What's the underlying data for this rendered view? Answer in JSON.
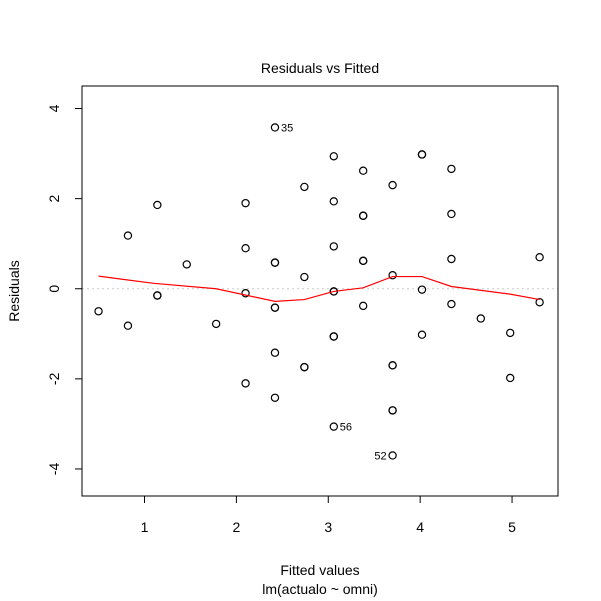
{
  "chart_data": {
    "type": "scatter",
    "title": "Residuals vs Fitted",
    "xlabel": "Fitted values",
    "ylabel": "Residuals",
    "subtitle": "lm(actualo ~ omni)",
    "xlim": [
      0.32,
      5.5
    ],
    "ylim": [
      -4.6,
      4.5
    ],
    "x_ticks": [
      1,
      2,
      3,
      4,
      5
    ],
    "y_ticks": [
      -4,
      -2,
      0,
      2,
      4
    ],
    "grid": false,
    "reference_line": 0,
    "point_color": "#000000",
    "smooth_color": "#ff0000",
    "reference_color": "#cccccc",
    "points": [
      {
        "x": 0.5,
        "y": -0.5
      },
      {
        "x": 0.82,
        "y": 1.18
      },
      {
        "x": 0.82,
        "y": -0.82
      },
      {
        "x": 1.14,
        "y": 1.86
      },
      {
        "x": 1.14,
        "y": -0.15
      },
      {
        "x": 1.14,
        "y": -0.15
      },
      {
        "x": 1.46,
        "y": 0.54
      },
      {
        "x": 1.78,
        "y": -0.78
      },
      {
        "x": 2.1,
        "y": 1.9
      },
      {
        "x": 2.1,
        "y": 0.9
      },
      {
        "x": 2.1,
        "y": -0.1
      },
      {
        "x": 2.1,
        "y": -2.1
      },
      {
        "x": 2.42,
        "y": 3.58
      },
      {
        "x": 2.42,
        "y": 0.58
      },
      {
        "x": 2.42,
        "y": 0.58
      },
      {
        "x": 2.42,
        "y": -0.42
      },
      {
        "x": 2.42,
        "y": -0.42
      },
      {
        "x": 2.42,
        "y": -1.42
      },
      {
        "x": 2.42,
        "y": -2.42
      },
      {
        "x": 2.74,
        "y": 2.26
      },
      {
        "x": 2.74,
        "y": 0.26
      },
      {
        "x": 2.74,
        "y": -1.74
      },
      {
        "x": 2.74,
        "y": -1.74
      },
      {
        "x": 3.06,
        "y": 2.94
      },
      {
        "x": 3.06,
        "y": 1.94
      },
      {
        "x": 3.06,
        "y": 0.94
      },
      {
        "x": 3.06,
        "y": -0.06
      },
      {
        "x": 3.06,
        "y": -0.06
      },
      {
        "x": 3.06,
        "y": -1.06
      },
      {
        "x": 3.06,
        "y": -1.06
      },
      {
        "x": 3.06,
        "y": -3.06
      },
      {
        "x": 3.38,
        "y": 2.62
      },
      {
        "x": 3.38,
        "y": 1.62
      },
      {
        "x": 3.38,
        "y": 1.62
      },
      {
        "x": 3.38,
        "y": 0.62
      },
      {
        "x": 3.38,
        "y": 0.62
      },
      {
        "x": 3.38,
        "y": -0.38
      },
      {
        "x": 3.7,
        "y": 2.3
      },
      {
        "x": 3.7,
        "y": 0.3
      },
      {
        "x": 3.7,
        "y": -1.7
      },
      {
        "x": 3.7,
        "y": -1.7
      },
      {
        "x": 3.7,
        "y": -2.7
      },
      {
        "x": 3.7,
        "y": -2.7
      },
      {
        "x": 3.7,
        "y": -3.7
      },
      {
        "x": 4.02,
        "y": 2.98
      },
      {
        "x": 4.02,
        "y": 2.98
      },
      {
        "x": 4.02,
        "y": -0.02
      },
      {
        "x": 4.02,
        "y": -1.02
      },
      {
        "x": 4.34,
        "y": 2.66
      },
      {
        "x": 4.34,
        "y": 1.66
      },
      {
        "x": 4.34,
        "y": 0.66
      },
      {
        "x": 4.34,
        "y": -0.34
      },
      {
        "x": 4.66,
        "y": -0.66
      },
      {
        "x": 4.98,
        "y": -0.98
      },
      {
        "x": 4.98,
        "y": -1.98
      },
      {
        "x": 5.3,
        "y": 0.7
      },
      {
        "x": 5.3,
        "y": -0.3
      }
    ],
    "labeled_points": [
      {
        "label": "35",
        "x": 2.42,
        "y": 3.58,
        "side": "right"
      },
      {
        "label": "56",
        "x": 3.06,
        "y": -3.06,
        "side": "right"
      },
      {
        "label": "52",
        "x": 3.7,
        "y": -3.7,
        "side": "left"
      }
    ],
    "smooth_line": {
      "x": [
        0.5,
        1.1,
        1.78,
        2.42,
        2.74,
        3.06,
        3.38,
        3.7,
        4.02,
        4.34,
        4.98,
        5.3
      ],
      "y": [
        0.28,
        0.12,
        0.0,
        -0.28,
        -0.24,
        -0.06,
        0.02,
        0.27,
        0.27,
        0.05,
        -0.12,
        -0.24
      ]
    }
  }
}
